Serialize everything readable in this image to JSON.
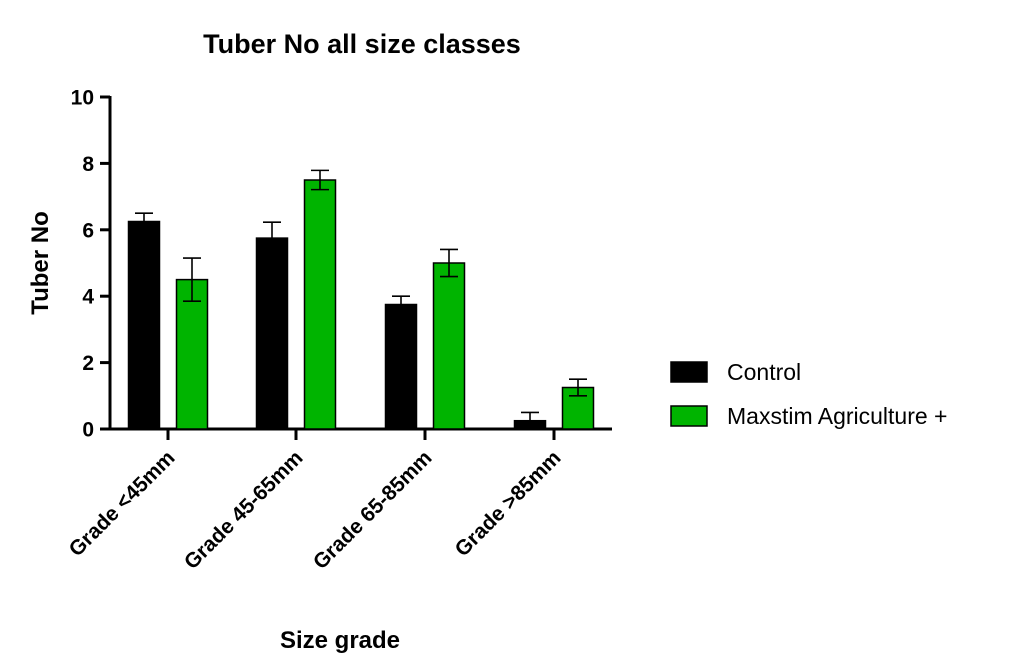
{
  "chart_data": {
    "type": "bar",
    "title": "Tuber No all size classes",
    "xlabel": "Size grade",
    "ylabel": "Tuber No",
    "ylim": [
      0,
      10
    ],
    "yticks": [
      0,
      2,
      4,
      6,
      8,
      10
    ],
    "grid": false,
    "legend_position": "right",
    "categories": [
      "Grade <45mm",
      "Grade 45-65mm",
      "Grade 65-85mm",
      "Grade >85mm"
    ],
    "series": [
      {
        "name": "Control",
        "color": "#000000",
        "values": [
          6.25,
          5.75,
          3.75,
          0.25
        ],
        "errors": [
          0.25,
          0.48,
          0.25,
          0.25
        ]
      },
      {
        "name": "Maxstim Agriculture +",
        "color": "#00b400",
        "values": [
          4.5,
          7.5,
          5.0,
          1.25
        ],
        "errors": [
          0.65,
          0.29,
          0.41,
          0.25
        ]
      }
    ]
  }
}
